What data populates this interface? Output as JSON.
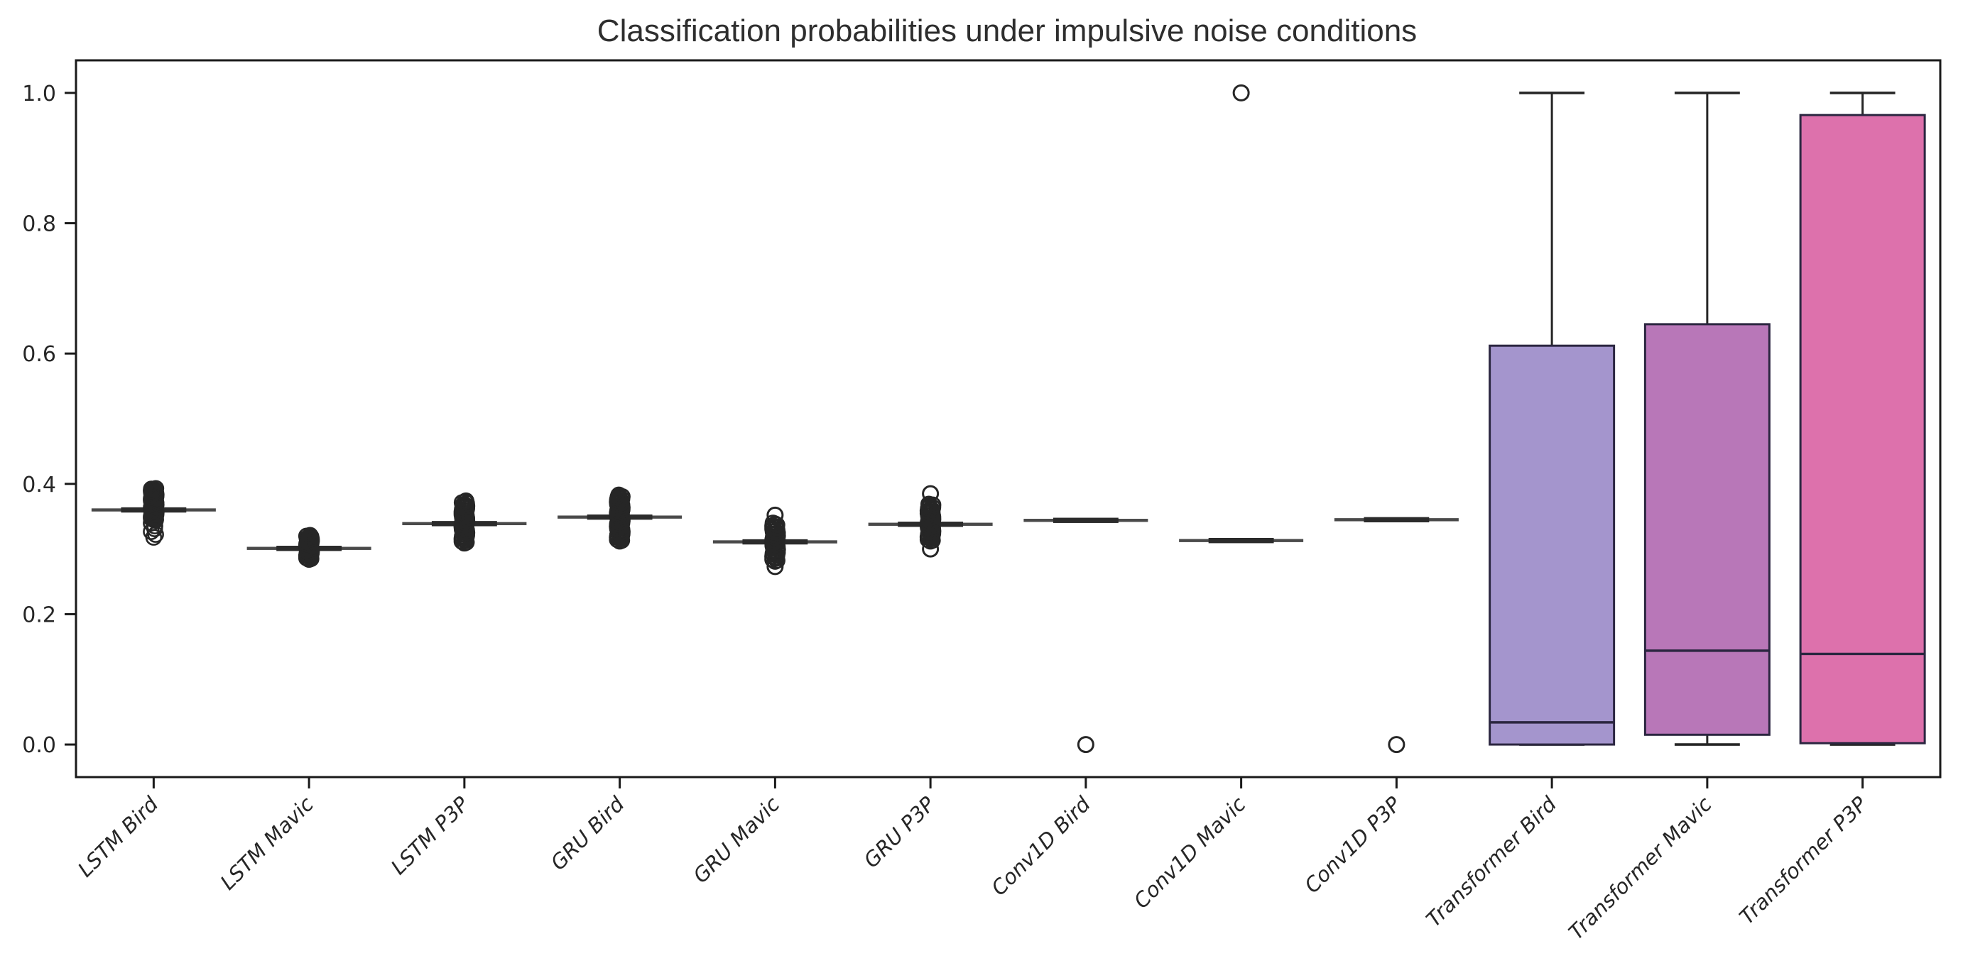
{
  "chart_data": {
    "type": "box",
    "title": "Classification probabilities under impulsive noise conditions",
    "xlabel": "",
    "ylabel": "",
    "ylim": [
      -0.05,
      1.05
    ],
    "ytick_values": [
      0.0,
      0.2,
      0.4,
      0.6,
      0.8,
      1.0
    ],
    "ytick_labels": [
      "0.0",
      "0.2",
      "0.4",
      "0.6",
      "0.8",
      "1.0"
    ],
    "grid": false,
    "legend_position": "none",
    "x_label_rotation_deg": 45,
    "categories": [
      "LSTM Bird",
      "LSTM Mavic",
      "LSTM P3P",
      "GRU Bird",
      "GRU Mavic",
      "GRU P3P",
      "Conv1D Bird",
      "Conv1D Mavic",
      "Conv1D P3P",
      "Transformer Bird",
      "Transformer Mavic",
      "Transformer P3P"
    ],
    "series": [
      {
        "label": "LSTM Bird",
        "style": "flat",
        "median": 0.36,
        "outlier_segments": [
          {
            "lo": 0.345,
            "hi": 0.393,
            "n": 55
          },
          {
            "lo": 0.318,
            "hi": 0.344,
            "n": 7
          }
        ],
        "outliers": []
      },
      {
        "label": "LSTM Mavic",
        "style": "flat",
        "median": 0.301,
        "outlier_segments": [
          {
            "lo": 0.284,
            "hi": 0.321,
            "n": 35
          }
        ],
        "outliers": []
      },
      {
        "label": "LSTM P3P",
        "style": "flat",
        "median": 0.339,
        "outlier_segments": [
          {
            "lo": 0.309,
            "hi": 0.374,
            "n": 50
          }
        ],
        "outliers": []
      },
      {
        "label": "GRU Bird",
        "style": "flat",
        "median": 0.349,
        "outlier_segments": [
          {
            "lo": 0.312,
            "hi": 0.383,
            "n": 60
          }
        ],
        "outliers": []
      },
      {
        "label": "GRU Mavic",
        "style": "flat",
        "median": 0.311,
        "outlier_segments": [
          {
            "lo": 0.281,
            "hi": 0.34,
            "n": 40
          }
        ],
        "outliers": [
          0.352,
          0.273
        ]
      },
      {
        "label": "GRU P3P",
        "style": "flat",
        "median": 0.338,
        "outlier_segments": [
          {
            "lo": 0.312,
            "hi": 0.369,
            "n": 45
          }
        ],
        "outliers": [
          0.385,
          0.3
        ]
      },
      {
        "label": "Conv1D Bird",
        "style": "flat",
        "median": 0.344,
        "outlier_segments": [],
        "outliers": [
          0.0
        ]
      },
      {
        "label": "Conv1D Mavic",
        "style": "flat",
        "median": 0.313,
        "outlier_segments": [],
        "outliers": [
          1.0
        ]
      },
      {
        "label": "Conv1D P3P",
        "style": "flat",
        "median": 0.345,
        "outlier_segments": [],
        "outliers": [
          0.0
        ]
      },
      {
        "label": "Transformer Bird",
        "style": "box",
        "whislo": 0.0,
        "q1": 0.0,
        "med": 0.034,
        "q3": 0.612,
        "whishi": 1.0,
        "color": "#a495cd"
      },
      {
        "label": "Transformer Mavic",
        "style": "box",
        "whislo": 0.0,
        "q1": 0.015,
        "med": 0.144,
        "q3": 0.645,
        "whishi": 1.0,
        "color": "#b877b8"
      },
      {
        "label": "Transformer P3P",
        "style": "box",
        "whislo": 0.0,
        "q1": 0.002,
        "med": 0.139,
        "q3": 0.966,
        "whishi": 1.0,
        "color": "#dd71ac"
      }
    ],
    "colors": {
      "flat_line": "#4a4a4a",
      "flat_core": "#2b2b2b",
      "outlier_stroke": "#262626",
      "whisker": "#262626",
      "box_edge": "#2b2640",
      "axis": "#1a1a1a",
      "text": "#262626",
      "background": "#ffffff"
    }
  }
}
